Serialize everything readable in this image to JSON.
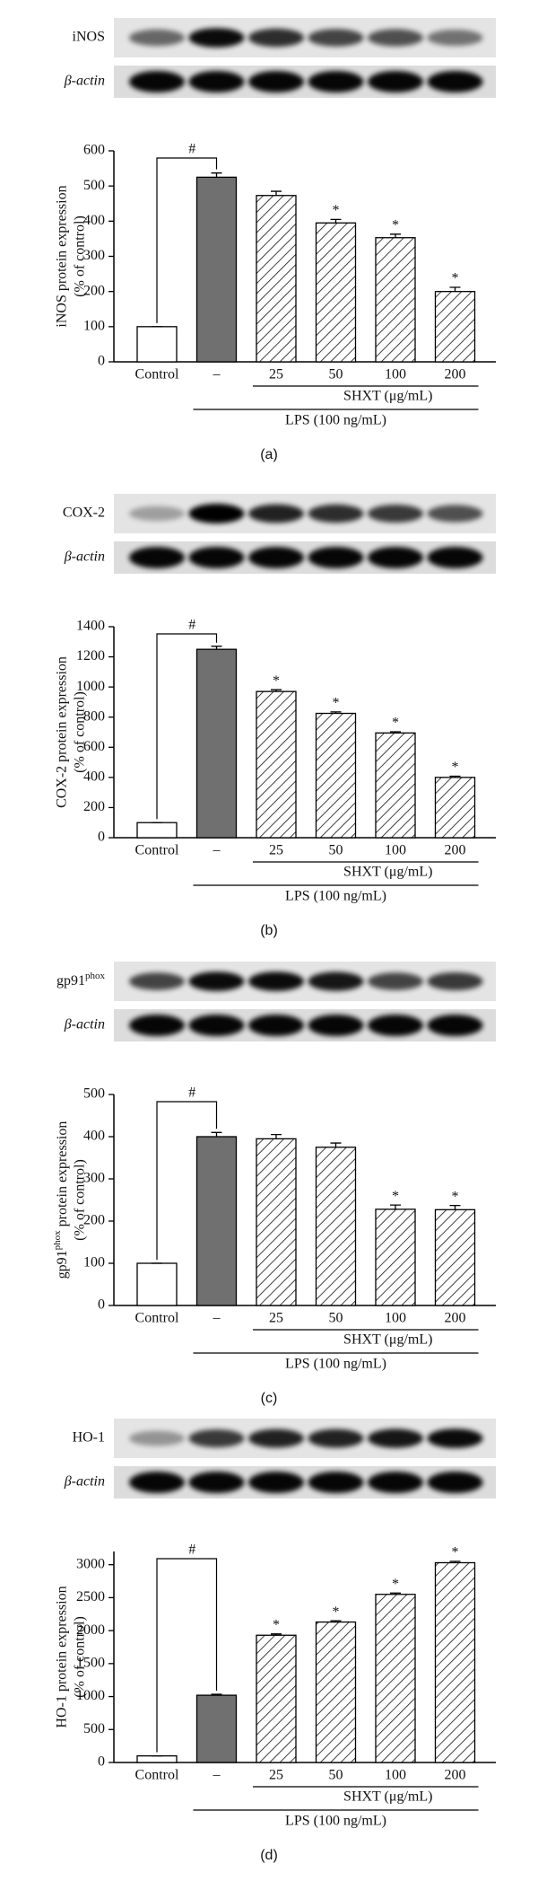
{
  "chart_data": [
    {
      "type": "bar",
      "panel_label": "(a)",
      "blot_labels": [
        "iNOS",
        "β-actin"
      ],
      "ylabel": [
        "iNOS protein expression",
        "(% of control)"
      ],
      "categories": [
        "Control",
        "–",
        "25",
        "50",
        "100",
        "200"
      ],
      "values": [
        100,
        525,
        473,
        395,
        353,
        200
      ],
      "errors": [
        0,
        12,
        12,
        10,
        10,
        12
      ],
      "colors": [
        "#ffffff",
        "#707070",
        "#ffffff",
        "#ffffff",
        "#ffffff",
        "#ffffff"
      ],
      "hatched": [
        false,
        false,
        true,
        true,
        true,
        true
      ],
      "stars": [
        null,
        null,
        null,
        "*",
        "*",
        "*"
      ],
      "bracket_label": "#",
      "group_labels": [
        "SHXT (μg/mL)",
        "LPS (100 ng/mL)"
      ],
      "ylim": [
        0,
        600
      ],
      "yticks": [
        0,
        100,
        200,
        300,
        400,
        500,
        600
      ]
    },
    {
      "type": "bar",
      "panel_label": "(b)",
      "blot_labels": [
        "COX-2",
        "β-actin"
      ],
      "ylabel": [
        "COX-2 protein expression",
        "(% of control)"
      ],
      "categories": [
        "Control",
        "–",
        "25",
        "50",
        "100",
        "200"
      ],
      "values": [
        100,
        1250,
        970,
        825,
        695,
        400
      ],
      "errors": [
        0,
        20,
        12,
        10,
        8,
        8
      ],
      "colors": [
        "#ffffff",
        "#707070",
        "#ffffff",
        "#ffffff",
        "#ffffff",
        "#ffffff"
      ],
      "hatched": [
        false,
        false,
        true,
        true,
        true,
        true
      ],
      "stars": [
        null,
        null,
        "*",
        "*",
        "*",
        "*"
      ],
      "bracket_label": "#",
      "group_labels": [
        "SHXT (μg/mL)",
        "LPS (100 ng/mL)"
      ],
      "ylim": [
        0,
        1400
      ],
      "yticks": [
        0,
        200,
        400,
        600,
        800,
        1000,
        1200,
        1400
      ]
    },
    {
      "type": "bar",
      "panel_label": "(c)",
      "blot_labels": [
        [
          "gp91",
          {
            "sup": "phox"
          }
        ],
        "β-actin"
      ],
      "ylabel": [
        [
          "gp91",
          {
            "sup": "phox"
          },
          " protein expression"
        ],
        "(% of control)"
      ],
      "categories": [
        "Control",
        "–",
        "25",
        "50",
        "100",
        "200"
      ],
      "values": [
        100,
        400,
        395,
        375,
        228,
        227
      ],
      "errors": [
        0,
        10,
        10,
        10,
        10,
        10
      ],
      "colors": [
        "#ffffff",
        "#707070",
        "#ffffff",
        "#ffffff",
        "#ffffff",
        "#ffffff"
      ],
      "hatched": [
        false,
        false,
        true,
        true,
        true,
        true
      ],
      "stars": [
        null,
        null,
        null,
        null,
        "*",
        "*"
      ],
      "bracket_label": "#",
      "group_labels": [
        "SHXT (μg/mL)",
        "LPS (100 ng/mL)"
      ],
      "ylim": [
        0,
        500
      ],
      "yticks": [
        0,
        100,
        200,
        300,
        400,
        500
      ]
    },
    {
      "type": "bar",
      "panel_label": "(d)",
      "blot_labels": [
        "HO-1",
        "β-actin"
      ],
      "ylabel": [
        "HO-1 protein expression",
        "(% of control)"
      ],
      "categories": [
        "Control",
        "–",
        "25",
        "50",
        "100",
        "200"
      ],
      "values": [
        100,
        1020,
        1930,
        2130,
        2550,
        3030
      ],
      "errors": [
        0,
        15,
        20,
        20,
        20,
        20
      ],
      "colors": [
        "#ffffff",
        "#707070",
        "#ffffff",
        "#ffffff",
        "#ffffff",
        "#ffffff"
      ],
      "hatched": [
        false,
        false,
        true,
        true,
        true,
        true
      ],
      "stars": [
        null,
        null,
        "*",
        "*",
        "*",
        "*"
      ],
      "bracket_label": "#",
      "group_labels": [
        "SHXT (μg/mL)",
        "LPS (100 ng/mL)"
      ],
      "ylim": [
        0,
        3200
      ],
      "yticks": [
        0,
        500,
        1000,
        1500,
        2000,
        2500,
        3000
      ]
    }
  ]
}
